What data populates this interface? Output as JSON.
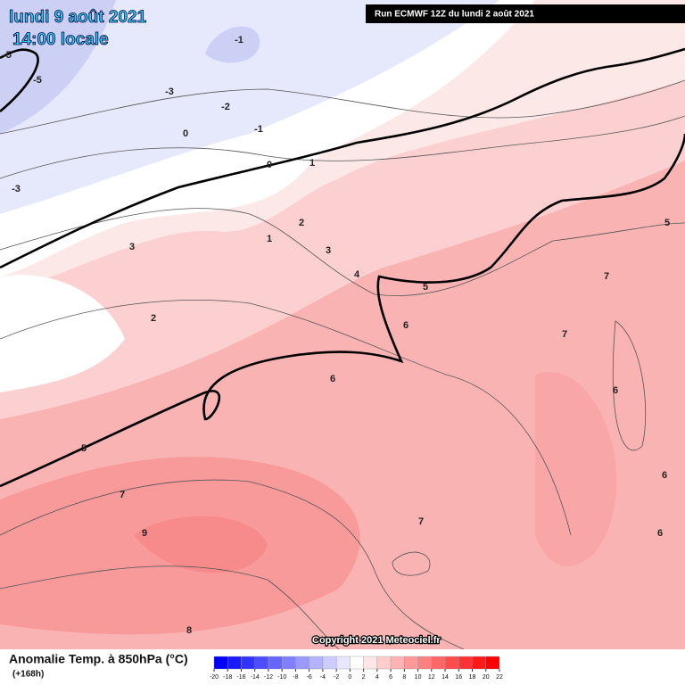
{
  "header": {
    "date": "lundi 9 août 2021",
    "time": "14:00 locale",
    "run": "Run ECMWF 12Z du lundi 2 août 2021"
  },
  "map": {
    "contour_labels": [
      "-5",
      "-5",
      "-1",
      "-3",
      "-2",
      "-1",
      "0",
      "0",
      "1",
      "-3",
      "2",
      "1",
      "3",
      "3",
      "4",
      "5",
      "7",
      "5",
      "2",
      "6",
      "7",
      "6",
      "6",
      "5",
      "7",
      "6",
      "9",
      "7",
      "6",
      "8"
    ],
    "copyright": "Copyright 2021 Meteociel.fr"
  },
  "footer": {
    "field": "Anomalie Temp. à 850hPa (°C)",
    "lead": "(+168h)"
  },
  "scale": {
    "ticks": [
      -20,
      -18,
      -16,
      -14,
      -12,
      -10,
      -8,
      -6,
      -4,
      -2,
      0,
      2,
      4,
      6,
      8,
      10,
      12,
      14,
      16,
      18,
      20,
      22
    ],
    "colors": [
      "#0000ff",
      "#1a1aff",
      "#3333ff",
      "#4d4dff",
      "#6666ff",
      "#8080ff",
      "#9999ff",
      "#b3b3ff",
      "#ccccff",
      "#e6e6ff",
      "#ffffff",
      "#ffe6e6",
      "#ffcccc",
      "#ffb3b3",
      "#ff9999",
      "#ff8080",
      "#ff6666",
      "#ff4d4d",
      "#ff3333",
      "#ff1a1a",
      "#ff0000"
    ]
  }
}
